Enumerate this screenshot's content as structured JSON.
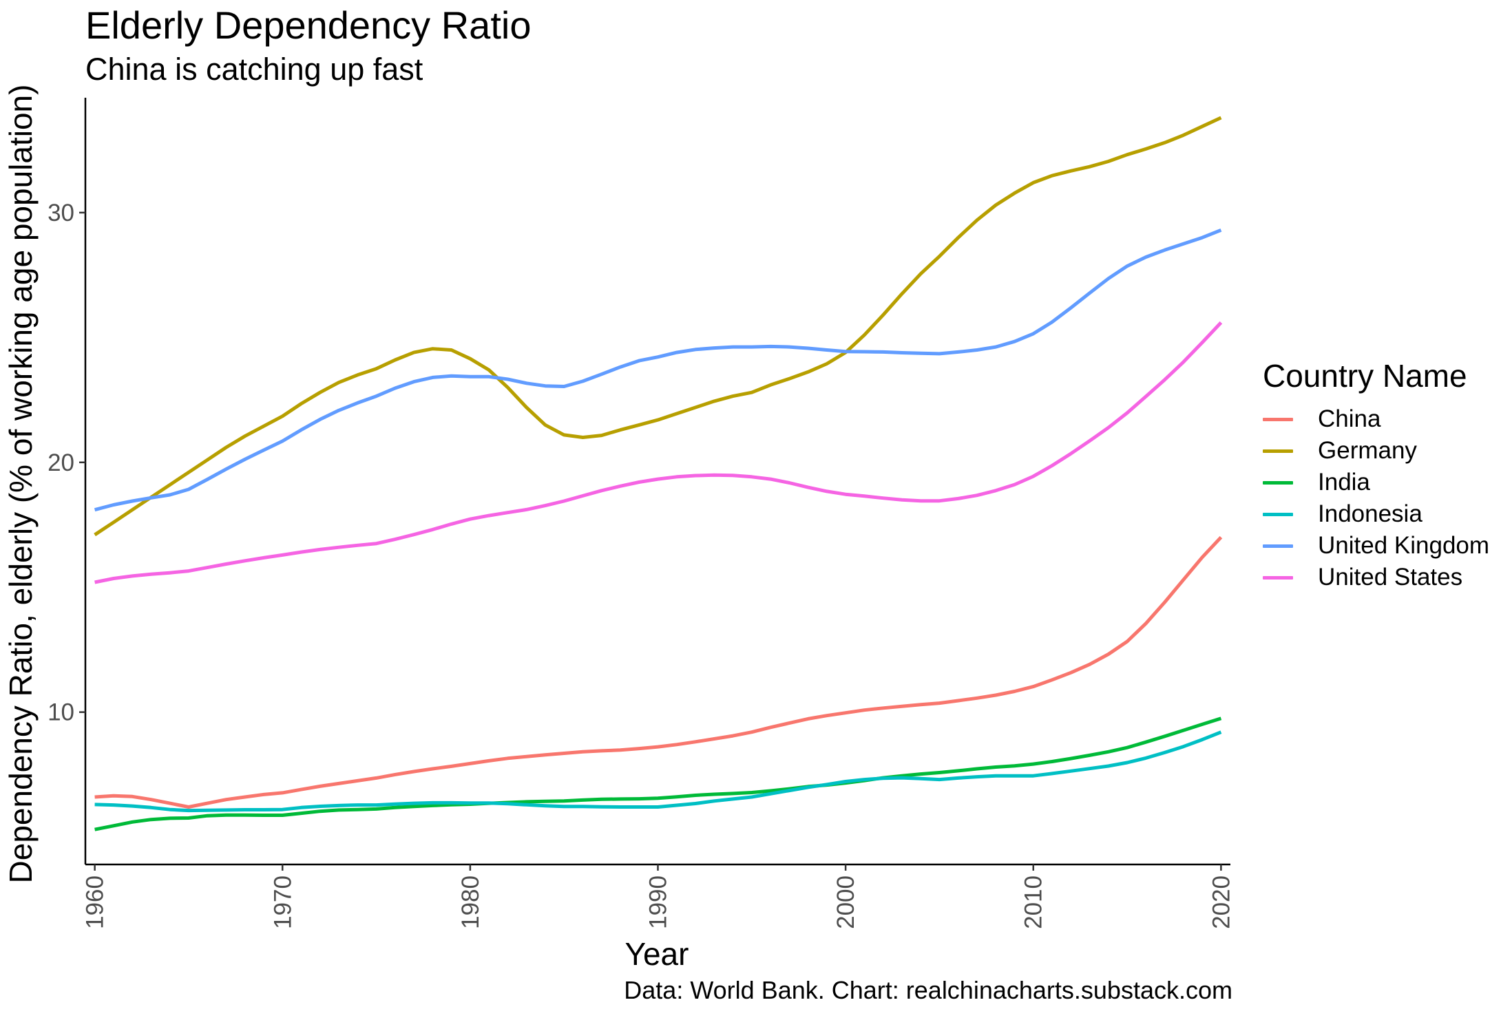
{
  "chart_data": {
    "type": "line",
    "title": "Elderly Dependency Ratio",
    "subtitle": "China is catching up fast",
    "caption": "Data: World Bank. Chart: realchinacharts.substack.com",
    "xlabel": "Year",
    "ylabel": "Dependency Ratio, elderly (% of working age population)",
    "xlim": [
      1959.5,
      2020.5
    ],
    "ylim": [
      3.9,
      34.6
    ],
    "x_ticks": [
      1960,
      1970,
      1980,
      1990,
      2000,
      2010,
      2020
    ],
    "y_ticks": [
      10,
      20,
      30
    ],
    "grid": false,
    "legend": {
      "title": "Country Name",
      "position": "right"
    },
    "x": [
      1960,
      1961,
      1962,
      1963,
      1964,
      1965,
      1966,
      1967,
      1968,
      1969,
      1970,
      1971,
      1972,
      1973,
      1974,
      1975,
      1976,
      1977,
      1978,
      1979,
      1980,
      1981,
      1982,
      1983,
      1984,
      1985,
      1986,
      1987,
      1988,
      1989,
      1990,
      1991,
      1992,
      1993,
      1994,
      1995,
      1996,
      1997,
      1998,
      1999,
      2000,
      2001,
      2002,
      2003,
      2004,
      2005,
      2006,
      2007,
      2008,
      2009,
      2010,
      2011,
      2012,
      2013,
      2014,
      2015,
      2016,
      2017,
      2018,
      2019,
      2020
    ],
    "series": [
      {
        "name": "China",
        "color": "#F8766D",
        "values": [
          6.6,
          6.65,
          6.62,
          6.5,
          6.35,
          6.2,
          6.35,
          6.5,
          6.6,
          6.7,
          6.77,
          6.9,
          7.03,
          7.14,
          7.25,
          7.36,
          7.5,
          7.62,
          7.73,
          7.83,
          7.94,
          8.05,
          8.15,
          8.22,
          8.29,
          8.35,
          8.41,
          8.45,
          8.48,
          8.54,
          8.61,
          8.7,
          8.81,
          8.93,
          9.05,
          9.2,
          9.39,
          9.56,
          9.73,
          9.86,
          9.97,
          10.08,
          10.16,
          10.23,
          10.3,
          10.36,
          10.46,
          10.56,
          10.68,
          10.83,
          11.02,
          11.29,
          11.58,
          11.91,
          12.32,
          12.83,
          13.55,
          14.4,
          15.3,
          16.2,
          17.0
        ]
      },
      {
        "name": "Germany",
        "color": "#B79F00",
        "values": [
          17.1,
          17.6,
          18.1,
          18.6,
          19.1,
          19.6,
          20.1,
          20.6,
          21.05,
          21.45,
          21.85,
          22.35,
          22.8,
          23.2,
          23.5,
          23.75,
          24.1,
          24.4,
          24.55,
          24.5,
          24.15,
          23.7,
          23.0,
          22.2,
          21.5,
          21.1,
          21.0,
          21.08,
          21.3,
          21.5,
          21.7,
          21.95,
          22.2,
          22.45,
          22.65,
          22.8,
          23.1,
          23.35,
          23.62,
          23.95,
          24.4,
          25.1,
          25.9,
          26.75,
          27.55,
          28.25,
          29.0,
          29.7,
          30.3,
          30.78,
          31.2,
          31.48,
          31.67,
          31.84,
          32.05,
          32.32,
          32.55,
          32.8,
          33.1,
          33.45,
          33.8
        ]
      },
      {
        "name": "India",
        "color": "#00BA38",
        "values": [
          5.3,
          5.45,
          5.6,
          5.7,
          5.75,
          5.76,
          5.85,
          5.88,
          5.88,
          5.87,
          5.87,
          5.95,
          6.03,
          6.08,
          6.1,
          6.12,
          6.18,
          6.22,
          6.26,
          6.29,
          6.31,
          6.35,
          6.38,
          6.41,
          6.43,
          6.44,
          6.48,
          6.51,
          6.52,
          6.53,
          6.55,
          6.61,
          6.67,
          6.71,
          6.74,
          6.78,
          6.85,
          6.93,
          7.02,
          7.08,
          7.16,
          7.26,
          7.37,
          7.45,
          7.52,
          7.58,
          7.65,
          7.73,
          7.8,
          7.85,
          7.92,
          8.02,
          8.14,
          8.27,
          8.41,
          8.58,
          8.8,
          9.03,
          9.27,
          9.51,
          9.75
        ]
      },
      {
        "name": "Indonesia",
        "color": "#00BFC4",
        "values": [
          6.3,
          6.28,
          6.24,
          6.18,
          6.1,
          6.06,
          6.07,
          6.08,
          6.09,
          6.09,
          6.1,
          6.18,
          6.23,
          6.26,
          6.28,
          6.28,
          6.32,
          6.35,
          6.37,
          6.37,
          6.36,
          6.36,
          6.33,
          6.29,
          6.25,
          6.22,
          6.22,
          6.21,
          6.2,
          6.2,
          6.2,
          6.27,
          6.34,
          6.44,
          6.52,
          6.6,
          6.73,
          6.86,
          6.99,
          7.1,
          7.22,
          7.3,
          7.35,
          7.37,
          7.34,
          7.3,
          7.36,
          7.41,
          7.45,
          7.45,
          7.45,
          7.54,
          7.64,
          7.74,
          7.84,
          7.98,
          8.16,
          8.38,
          8.62,
          8.9,
          9.2
        ]
      },
      {
        "name": "United Kingdom",
        "color": "#619CFF",
        "values": [
          18.1,
          18.3,
          18.45,
          18.58,
          18.7,
          18.92,
          19.32,
          19.73,
          20.12,
          20.49,
          20.85,
          21.3,
          21.72,
          22.08,
          22.38,
          22.65,
          22.97,
          23.23,
          23.4,
          23.46,
          23.43,
          23.43,
          23.33,
          23.17,
          23.06,
          23.04,
          23.25,
          23.53,
          23.82,
          24.07,
          24.22,
          24.4,
          24.52,
          24.58,
          24.62,
          24.62,
          24.64,
          24.62,
          24.57,
          24.5,
          24.44,
          24.43,
          24.42,
          24.39,
          24.37,
          24.35,
          24.42,
          24.5,
          24.62,
          24.84,
          25.15,
          25.62,
          26.19,
          26.78,
          27.36,
          27.86,
          28.22,
          28.5,
          28.75,
          29.0,
          29.3
        ]
      },
      {
        "name": "United States",
        "color": "#F564E3",
        "values": [
          15.2,
          15.35,
          15.45,
          15.52,
          15.58,
          15.65,
          15.79,
          15.93,
          16.06,
          16.18,
          16.29,
          16.41,
          16.51,
          16.6,
          16.68,
          16.75,
          16.92,
          17.11,
          17.31,
          17.53,
          17.73,
          17.87,
          17.99,
          18.11,
          18.27,
          18.45,
          18.66,
          18.87,
          19.05,
          19.21,
          19.33,
          19.42,
          19.47,
          19.49,
          19.48,
          19.42,
          19.33,
          19.18,
          19.0,
          18.84,
          18.72,
          18.65,
          18.57,
          18.5,
          18.46,
          18.46,
          18.55,
          18.68,
          18.87,
          19.11,
          19.44,
          19.87,
          20.35,
          20.86,
          21.39,
          21.98,
          22.64,
          23.31,
          24.02,
          24.8,
          25.6
        ]
      }
    ]
  }
}
